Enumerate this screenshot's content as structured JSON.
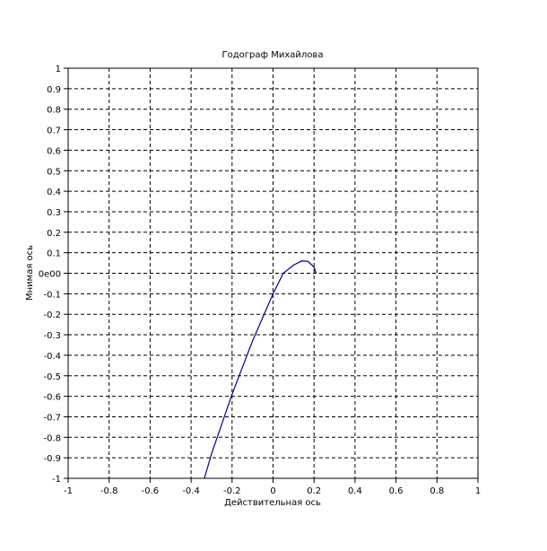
{
  "chart_data": {
    "type": "line",
    "title": "Годограф Михайлова",
    "x_label": "Действительная ось",
    "y_label": "Мнимая ось",
    "x": [
      0.21,
      0.2,
      0.17,
      0.14,
      0.1,
      0.05,
      0,
      -0.1,
      -0.2,
      -0.3,
      -0.335
    ],
    "values": [
      0,
      0.03,
      0.058,
      0.06,
      0.04,
      0,
      -0.1,
      -0.33,
      -0.59,
      -0.88,
      -1
    ],
    "color": "#00008b",
    "xlim": [
      -1,
      1
    ],
    "ylim": [
      -1,
      1
    ],
    "xticks": [
      -1,
      -0.8,
      -0.6,
      -0.4,
      -0.2,
      0,
      0.2,
      0.4,
      0.6,
      0.8,
      1
    ],
    "yticks": [
      -1,
      -0.9,
      -0.8,
      -0.7,
      -0.6,
      -0.5,
      -0.4,
      -0.3,
      -0.2,
      -0.1,
      {
        "value": 0,
        "label": "0e00"
      },
      0.1,
      0.2,
      0.3,
      0.4,
      0.5,
      0.6,
      0.7,
      0.8,
      0.9,
      1
    ],
    "grid": true
  }
}
